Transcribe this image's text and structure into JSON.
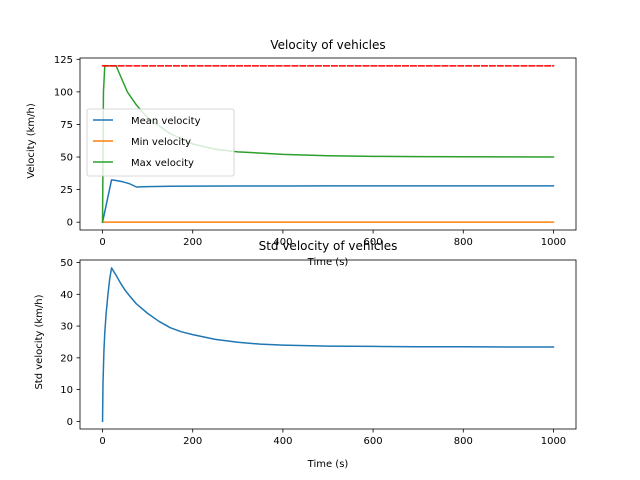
{
  "chart_data": [
    {
      "type": "line",
      "title": "Velocity of vehicles",
      "xlabel": "Time (s)",
      "ylabel": "Velocity (km/h)",
      "xlim": [
        -50,
        1050
      ],
      "ylim": [
        -6,
        126
      ],
      "xticks": [
        0,
        200,
        400,
        600,
        800,
        1000
      ],
      "yticks": [
        0,
        25,
        50,
        75,
        100,
        125
      ],
      "legend_position": "center-left",
      "series": [
        {
          "name": "Mean velocity",
          "color": "#1f77b4",
          "style": "solid",
          "x": [
            0,
            20,
            30,
            45,
            60,
            75,
            100,
            150,
            200,
            300,
            400,
            500,
            600,
            700,
            800,
            900,
            1000
          ],
          "y": [
            0,
            32.5,
            32,
            31,
            29.5,
            27,
            27.3,
            27.6,
            27.7,
            27.8,
            27.8,
            27.9,
            27.9,
            27.9,
            27.9,
            27.9,
            27.9
          ]
        },
        {
          "name": "Min velocity",
          "color": "#ff7f0e",
          "style": "solid",
          "x": [
            0,
            1000
          ],
          "y": [
            0,
            0
          ]
        },
        {
          "name": "Max velocity",
          "color": "#2ca02c",
          "style": "solid",
          "x": [
            0,
            2,
            5,
            30,
            40,
            55,
            75,
            100,
            150,
            200,
            250,
            300,
            400,
            500,
            600,
            700,
            800,
            900,
            1000
          ],
          "y": [
            0,
            100,
            120,
            120,
            112,
            100,
            90,
            80,
            68,
            60,
            56,
            54,
            52,
            51,
            50.5,
            50.3,
            50.2,
            50.1,
            50
          ]
        },
        {
          "color": "#ff0000",
          "style": "dashed",
          "x": [
            0,
            1000
          ],
          "y": [
            120,
            120
          ]
        }
      ]
    },
    {
      "type": "line",
      "title": "Std velocity of vehicles",
      "xlabel": "Time (s)",
      "ylabel": "Std velocity (km/h)",
      "xlim": [
        -50,
        1050
      ],
      "ylim": [
        -2.4,
        50.8
      ],
      "xticks": [
        0,
        200,
        400,
        600,
        800,
        1000
      ],
      "yticks": [
        0,
        10,
        20,
        30,
        40,
        50
      ],
      "series": [
        {
          "color": "#1f77b4",
          "style": "solid",
          "x": [
            0,
            1,
            3,
            5,
            8,
            12,
            16,
            20,
            30,
            40,
            50,
            60,
            75,
            100,
            125,
            150,
            175,
            200,
            250,
            300,
            350,
            400,
            500,
            600,
            700,
            800,
            900,
            1000
          ],
          "y": [
            0,
            12,
            22,
            28,
            34,
            40,
            45,
            48.3,
            46,
            43.5,
            41.3,
            39.5,
            37,
            34,
            31.5,
            29.5,
            28.2,
            27.3,
            25.8,
            24.9,
            24.3,
            24,
            23.7,
            23.6,
            23.5,
            23.5,
            23.4,
            23.4
          ]
        }
      ]
    }
  ]
}
